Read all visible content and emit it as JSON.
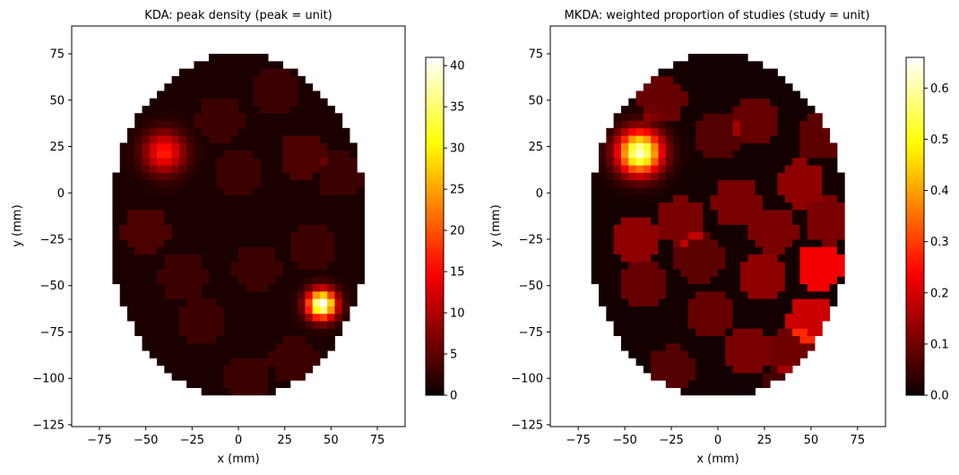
{
  "chart_data": [
    {
      "type": "heatmap",
      "title": "KDA: peak density (peak = unit)",
      "xlabel": "x (mm)",
      "ylabel": "y (mm)",
      "xlim": [
        -90,
        90
      ],
      "ylim": [
        -126,
        90
      ],
      "xticks": [
        -75,
        -50,
        -25,
        0,
        25,
        50,
        75
      ],
      "yticks": [
        75,
        50,
        25,
        0,
        -25,
        -50,
        -75,
        -100,
        -125
      ],
      "xtick_labels": [
        "−75",
        "−50",
        "−25",
        "0",
        "25",
        "50",
        "75"
      ],
      "ytick_labels": [
        "75",
        "50",
        "25",
        "0",
        "−25",
        "−50",
        "−75",
        "−100",
        "−125"
      ],
      "colormap": "hot",
      "colorbar": {
        "min": 0,
        "max": 41,
        "ticks": [
          0,
          5,
          10,
          15,
          20,
          25,
          30,
          35,
          40
        ],
        "tick_labels": [
          "0",
          "5",
          "10",
          "15",
          "20",
          "25",
          "30",
          "35",
          "40"
        ]
      },
      "mask": {
        "shape": "ellipse",
        "center": [
          0,
          -18
        ],
        "radius_x": 70,
        "radius_y": 93
      },
      "background_level": 1,
      "hotspots": [
        {
          "x": -40,
          "y": 22,
          "radius": 17,
          "value": 16
        },
        {
          "x": 45,
          "y": -60,
          "radius": 12,
          "value": 41
        }
      ],
      "blobs": [
        {
          "x": 20,
          "y": 55,
          "value": 2
        },
        {
          "x": 0,
          "y": 10,
          "value": 2
        },
        {
          "x": -50,
          "y": -20,
          "value": 3
        },
        {
          "x": 10,
          "y": -40,
          "value": 2
        },
        {
          "x": 35,
          "y": 20,
          "value": 3
        },
        {
          "x": -20,
          "y": -70,
          "value": 2
        },
        {
          "x": 5,
          "y": -100,
          "value": 2
        },
        {
          "x": 40,
          "y": -30,
          "value": 2
        },
        {
          "x": -10,
          "y": 40,
          "value": 2
        },
        {
          "x": -30,
          "y": -45,
          "value": 2
        },
        {
          "x": 55,
          "y": 10,
          "value": 2
        },
        {
          "x": 30,
          "y": -90,
          "value": 2
        }
      ]
    },
    {
      "type": "heatmap",
      "title": "MKDA: weighted proportion of studies (study = unit)",
      "xlabel": "x (mm)",
      "ylabel": "y (mm)",
      "xlim": [
        -90,
        90
      ],
      "ylim": [
        -126,
        90
      ],
      "xticks": [
        -75,
        -50,
        -25,
        0,
        25,
        50,
        75
      ],
      "yticks": [
        75,
        50,
        25,
        0,
        -25,
        -50,
        -75,
        -100,
        -125
      ],
      "xtick_labels": [
        "−75",
        "−50",
        "−25",
        "0",
        "25",
        "50",
        "75"
      ],
      "ytick_labels": [
        "75",
        "50",
        "25",
        "0",
        "−25",
        "−50",
        "−75",
        "−100",
        "−125"
      ],
      "colormap": "hot",
      "colorbar": {
        "min": 0,
        "max": 0.66,
        "ticks": [
          0,
          0.1,
          0.2,
          0.3,
          0.4,
          0.5,
          0.6
        ],
        "tick_labels": [
          "0.0",
          "0.1",
          "0.2",
          "0.3",
          "0.4",
          "0.5",
          "0.6"
        ]
      },
      "mask": {
        "shape": "ellipse",
        "center": [
          0,
          -18
        ],
        "radius_x": 70,
        "radius_y": 93
      },
      "background_level": 0.01,
      "hotspots": [
        {
          "x": -42,
          "y": 22,
          "radius": 18,
          "value": 0.62
        }
      ],
      "blobs": [
        {
          "x": -30,
          "y": 50,
          "value": 0.08
        },
        {
          "x": 55,
          "y": -40,
          "value": 0.22
        },
        {
          "x": 50,
          "y": -68,
          "value": 0.18
        },
        {
          "x": -45,
          "y": -25,
          "value": 0.12
        },
        {
          "x": 10,
          "y": -5,
          "value": 0.1
        },
        {
          "x": -20,
          "y": -15,
          "value": 0.1
        },
        {
          "x": 45,
          "y": 5,
          "value": 0.12
        },
        {
          "x": 30,
          "y": -20,
          "value": 0.1
        },
        {
          "x": 20,
          "y": 40,
          "value": 0.08
        },
        {
          "x": -40,
          "y": -50,
          "value": 0.08
        },
        {
          "x": -5,
          "y": -65,
          "value": 0.08
        },
        {
          "x": 15,
          "y": -85,
          "value": 0.1
        },
        {
          "x": -25,
          "y": -95,
          "value": 0.06
        },
        {
          "x": 35,
          "y": -105,
          "value": 0.05
        },
        {
          "x": 60,
          "y": -15,
          "value": 0.1
        },
        {
          "x": 0,
          "y": 30,
          "value": 0.06
        },
        {
          "x": 25,
          "y": -45,
          "value": 0.12
        },
        {
          "x": -10,
          "y": -35,
          "value": 0.07
        },
        {
          "x": 55,
          "y": 30,
          "value": 0.07
        },
        {
          "x": 40,
          "y": -85,
          "value": 0.09
        }
      ]
    }
  ]
}
